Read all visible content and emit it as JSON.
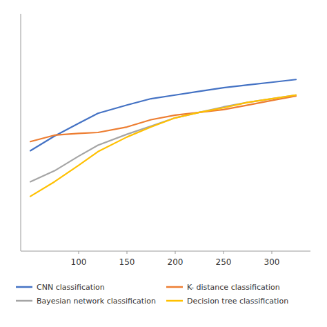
{
  "chart_data": {
    "type": "line",
    "x": [
      50,
      75,
      100,
      120,
      150,
      175,
      200,
      225,
      250,
      275,
      300,
      325
    ],
    "series": [
      {
        "name": "CNN classification",
        "color": "#4472C4",
        "values": [
          0.55,
          0.63,
          0.7,
          0.755,
          0.8,
          0.835,
          0.855,
          0.875,
          0.895,
          0.91,
          0.925,
          0.94
        ]
      },
      {
        "name": "K- distance classification",
        "color": "#ED7D31",
        "values": [
          0.6,
          0.635,
          0.645,
          0.65,
          0.68,
          0.72,
          0.745,
          0.76,
          0.775,
          0.8,
          0.825,
          0.85
        ]
      },
      {
        "name": "Bayesian network classification",
        "color": "#A5A5A5",
        "values": [
          0.38,
          0.44,
          0.52,
          0.58,
          0.64,
          0.685,
          0.73,
          0.76,
          0.79,
          0.815,
          0.835,
          0.855
        ]
      },
      {
        "name": "Decision tree classification",
        "color": "#FFC000",
        "values": [
          0.3,
          0.38,
          0.47,
          0.545,
          0.625,
          0.68,
          0.73,
          0.76,
          0.785,
          0.815,
          0.835,
          0.855
        ]
      }
    ],
    "xlim": [
      40,
      340
    ],
    "ylim": [
      0.0,
      1.3
    ],
    "xticks": [
      100,
      150,
      200,
      250,
      300
    ],
    "yticks": [],
    "grid": false,
    "tick_labels": "x",
    "legend": "bottom"
  }
}
